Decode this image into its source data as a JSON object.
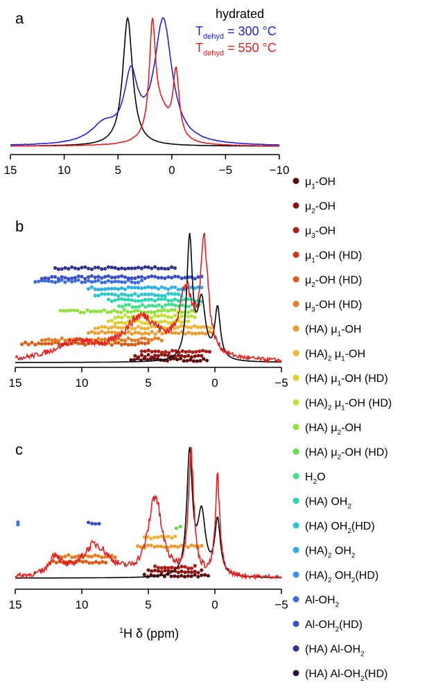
{
  "figure": {
    "panels": [
      {
        "id": "a",
        "letter": "a"
      },
      {
        "id": "b",
        "letter": "b"
      },
      {
        "id": "c",
        "letter": "c"
      }
    ],
    "xlabel_prefix": "1",
    "xlabel_main": "H δ (ppm)"
  },
  "legend_a": {
    "title": "hydrated",
    "entries": [
      {
        "prefix": "T",
        "sub": "dehyd",
        "rest": " = 300 °C",
        "color": "#1f1fe6"
      },
      {
        "prefix": "T",
        "sub": "dehyd",
        "rest": " = 550 °C",
        "color": "#e51e1e"
      }
    ]
  },
  "site_legend": [
    {
      "pre": "",
      "sym": "μ",
      "sub": "1",
      "post": "-OH",
      "color": "#5c0a10"
    },
    {
      "pre": "",
      "sym": "μ",
      "sub": "2",
      "post": "-OH",
      "color": "#8a1010"
    },
    {
      "pre": "",
      "sym": "μ",
      "sub": "3",
      "post": "-OH",
      "color": "#b01a14"
    },
    {
      "pre": "",
      "sym": "μ",
      "sub": "1",
      "post": "-OH (HD)",
      "color": "#cc3512"
    },
    {
      "pre": "",
      "sym": "μ",
      "sub": "2",
      "post": "-OH (HD)",
      "color": "#dd5a14"
    },
    {
      "pre": "",
      "sym": "μ",
      "sub": "3",
      "post": "-OH (HD)",
      "color": "#ea7a1c"
    },
    {
      "pre": "(HA) ",
      "sym": "μ",
      "sub": "1",
      "post": "-OH",
      "color": "#f09a2a"
    },
    {
      "pre": "(HA)",
      "presub": "2",
      "sym": " μ",
      "sub": "1",
      "post": "-OH",
      "color": "#f2b232"
    },
    {
      "pre": " (HA) ",
      "sym": "μ",
      "sub": "1",
      "post": "-OH (HD)",
      "color": "#dcd22a"
    },
    {
      "pre": "(HA)",
      "presub": "2",
      "sym": " μ",
      "sub": "1",
      "post": "-OH (HD)",
      "color": "#bce034"
    },
    {
      "pre": "(HA) ",
      "sym": "μ",
      "sub": "2",
      "post": "-OH",
      "color": "#8fe03a"
    },
    {
      "pre": " (HA) ",
      "sym": "μ",
      "sub": "2",
      "post": "-OH (HD)",
      "color": "#5fe04a"
    },
    {
      "pre": "H",
      "presub": "2",
      "sym": "",
      "sub": "",
      "post": "O",
      "color": "#3ee088"
    },
    {
      "pre": "(HA) OH",
      "presub": "2",
      "sym": "",
      "sub": "",
      "post": "",
      "color": "#2ad8b0"
    },
    {
      "pre": "(HA) OH",
      "presub": "2",
      "sym": "",
      "sub": "",
      "post": "(HD)",
      "color": "#28c8cc"
    },
    {
      "pre": "(HA)",
      "presub": "2",
      "sym": " OH",
      "sub": "2",
      "post": "",
      "color": "#2ab0e6"
    },
    {
      "pre": "(HA)",
      "presub": "2",
      "sym": " OH",
      "sub": "2",
      "post": "(HD)",
      "color": "#3a8ff0"
    },
    {
      "pre": "Al-OH",
      "presub": "2",
      "sym": "",
      "sub": "",
      "post": "",
      "color": "#3a6ee0"
    },
    {
      "pre": "Al-OH",
      "presub": "2",
      "sym": "",
      "sub": "",
      "post": "(HD)",
      "color": "#3a4ec8"
    },
    {
      "pre": "(HA) Al-OH",
      "presub": "2",
      "sym": "",
      "sub": "",
      "post": "",
      "color": "#2e3290"
    },
    {
      "pre": "(HA) Al-OH",
      "presub": "2",
      "sym": "",
      "sub": "",
      "post": "(HD)",
      "color": "#2a1040"
    }
  ],
  "chart_data": [
    {
      "panel": "a",
      "type": "line",
      "xlabel": "",
      "ylabel": "",
      "xlim": [
        15,
        -10
      ],
      "xticks": [
        15,
        10,
        5,
        0,
        -5,
        -10
      ],
      "xtick_labels": [
        "15",
        "10",
        "5",
        "0",
        "−5",
        "−10"
      ],
      "legend_title": "hydrated",
      "series": [
        {
          "name": "hydrated",
          "color": "#000000",
          "peaks": [
            {
              "c": 4.1,
              "h": 1.0,
              "w": 1.1
            }
          ],
          "noise": 0.0
        },
        {
          "name": "Tdehyd = 300 °C",
          "color": "#1f1fe6",
          "peaks": [
            {
              "c": 0.8,
              "h": 0.82,
              "w": 2.0
            },
            {
              "c": 3.8,
              "h": 0.42,
              "w": 1.5
            },
            {
              "c": 6.3,
              "h": 0.12,
              "w": 3.0
            }
          ],
          "noise": 0.004
        },
        {
          "name": "Tdehyd = 550 °C",
          "color": "#e51e1e",
          "peaks": [
            {
              "c": 1.8,
              "h": 0.9,
              "w": 0.7
            },
            {
              "c": -0.4,
              "h": 0.55,
              "w": 0.7
            },
            {
              "c": 1.0,
              "h": 0.25,
              "w": 2.0
            }
          ],
          "noise": 0.006
        }
      ]
    },
    {
      "panel": "b",
      "type": "line",
      "xlabel": "",
      "xlim": [
        15,
        -5
      ],
      "xticks": [
        15,
        10,
        5,
        0,
        -5
      ],
      "xtick_labels": [
        "15",
        "10",
        "5",
        "0",
        "−5"
      ],
      "series": [
        {
          "name": "black",
          "color": "#000000",
          "peaks": [
            {
              "c": 1.9,
              "h": 0.95,
              "w": 0.5
            },
            {
              "c": 1.0,
              "h": 0.45,
              "w": 0.7
            },
            {
              "c": -0.2,
              "h": 0.4,
              "w": 0.5
            }
          ],
          "noise": 0.0
        },
        {
          "name": "red",
          "color": "#e51e1e",
          "peaks": [
            {
              "c": 0.8,
              "h": 1.0,
              "w": 0.7
            },
            {
              "c": 2.2,
              "h": 0.55,
              "w": 1.2
            },
            {
              "c": 5.5,
              "h": 0.38,
              "w": 3.5
            },
            {
              "c": 10.5,
              "h": 0.15,
              "w": 4.0
            }
          ],
          "noise": 0.06
        }
      ],
      "scatter_bands": [
        {
          "y": 0.02,
          "x": [
            6.3,
            0.6
          ],
          "color": "#5c0a10"
        },
        {
          "y": 0.05,
          "x": [
            6.0,
            1.0
          ],
          "color": "#8a1010"
        },
        {
          "y": 0.08,
          "x": [
            5.5,
            0.4
          ],
          "color": "#b01a14"
        },
        {
          "y": 0.14,
          "x": [
            14.5,
            5.0
          ],
          "color": "#dd5a14"
        },
        {
          "y": 0.17,
          "x": [
            13.0,
            4.0
          ],
          "color": "#ea7a1c"
        },
        {
          "y": 0.22,
          "x": [
            9.5,
            0.2
          ],
          "color": "#f09a2a"
        },
        {
          "y": 0.26,
          "x": [
            9.0,
            0.3
          ],
          "color": "#f2b232"
        },
        {
          "y": 0.3,
          "x": [
            8.0,
            2.0
          ],
          "color": "#dcd22a"
        },
        {
          "y": 0.34,
          "x": [
            7.5,
            1.5
          ],
          "color": "#bce034"
        },
        {
          "y": 0.38,
          "x": [
            11.6,
            1.5
          ],
          "color": "#8fe03a"
        },
        {
          "y": 0.42,
          "x": [
            7.2,
            1.2
          ],
          "color": "#3ee088"
        },
        {
          "y": 0.46,
          "x": [
            8.0,
            1.0
          ],
          "color": "#2ad8b0"
        },
        {
          "y": 0.5,
          "x": [
            9.0,
            2.5
          ],
          "color": "#28c8cc"
        },
        {
          "y": 0.55,
          "x": [
            9.5,
            1.0
          ],
          "color": "#2ab0e6"
        },
        {
          "y": 0.6,
          "x": [
            13.5,
            5.5
          ],
          "color": "#3a6ee0"
        },
        {
          "y": 0.63,
          "x": [
            13.0,
            1.0
          ],
          "color": "#3a4ec8"
        },
        {
          "y": 0.7,
          "x": [
            12.0,
            3.0
          ],
          "color": "#2e3290"
        }
      ]
    },
    {
      "panel": "c",
      "type": "line",
      "xlabel": "1H δ (ppm)",
      "xlim": [
        15,
        -5
      ],
      "xticks": [
        15,
        10,
        5,
        0,
        -5
      ],
      "xtick_labels": [
        "15",
        "10",
        "5",
        "0",
        "−5"
      ],
      "series": [
        {
          "name": "black",
          "color": "#000000",
          "peaks": [
            {
              "c": 1.9,
              "h": 1.0,
              "w": 0.5
            },
            {
              "c": 1.0,
              "h": 0.5,
              "w": 0.7
            },
            {
              "c": -0.2,
              "h": 0.45,
              "w": 0.5
            }
          ],
          "noise": 0.0
        },
        {
          "name": "red",
          "color": "#e51e1e",
          "peaks": [
            {
              "c": 1.8,
              "h": 0.95,
              "w": 0.5
            },
            {
              "c": -0.2,
              "h": 0.75,
              "w": 0.4
            },
            {
              "c": 4.5,
              "h": 0.62,
              "w": 1.2
            },
            {
              "c": 9.0,
              "h": 0.25,
              "w": 2.5
            },
            {
              "c": 12.0,
              "h": 0.15,
              "w": 1.0
            }
          ],
          "noise": 0.06
        }
      ],
      "scatter_bands": [
        {
          "y": 0.02,
          "x": [
            5.3,
            0.5
          ],
          "color": "#5c0a10"
        },
        {
          "y": 0.05,
          "x": [
            5.0,
            1.0
          ],
          "color": "#8a1010"
        },
        {
          "y": 0.08,
          "x": [
            4.5,
            1.5
          ],
          "color": "#b01a14"
        },
        {
          "y": 0.12,
          "x": [
            12.4,
            8.2
          ],
          "color": "#dd5a14"
        },
        {
          "y": 0.16,
          "x": [
            12.0,
            7.5
          ],
          "color": "#ea7a1c"
        },
        {
          "y": 0.23,
          "x": [
            5.8,
            1.0
          ],
          "color": "#f09a2a"
        },
        {
          "y": 0.3,
          "x": [
            5.3,
            3.0
          ],
          "color": "#f2b232"
        },
        {
          "y": 0.37,
          "x": [
            2.9,
            2.6
          ],
          "color": "#5fe04a"
        },
        {
          "y": 0.4,
          "x": [
            14.8,
            14.8
          ],
          "color": "#3a6ee0"
        },
        {
          "y": 0.4,
          "x": [
            9.5,
            8.7
          ],
          "color": "#3a4ec8"
        }
      ]
    }
  ]
}
